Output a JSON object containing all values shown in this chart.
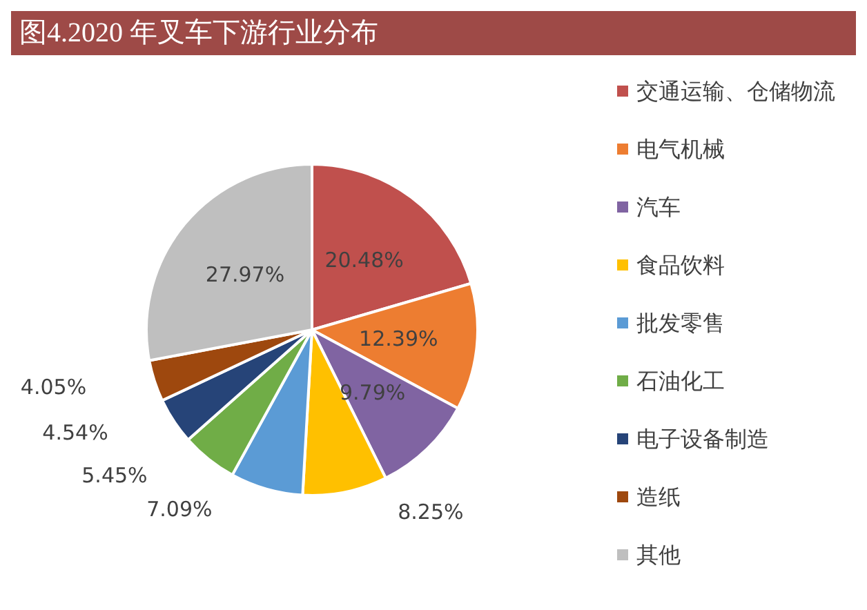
{
  "chart_data": {
    "type": "pie",
    "title": "图4.2020 年叉车下游行业分布",
    "categories": [
      "交通运输、仓储物流",
      "电气机械",
      "汽车",
      "食品饮料",
      "批发零售",
      "石油化工",
      "电子设备制造",
      "造纸",
      "其他"
    ],
    "values": [
      20.48,
      12.39,
      9.79,
      8.25,
      7.09,
      5.45,
      4.54,
      4.05,
      27.97
    ],
    "colors": [
      "#c0504d",
      "#ed7d31",
      "#8064a2",
      "#ffc000",
      "#5b9bd5",
      "#70ad47",
      "#264478",
      "#9e480e",
      "#bfbfbf"
    ],
    "value_labels": [
      "20.48%",
      "12.39%",
      "9.79%",
      "8.25%",
      "7.09%",
      "5.45%",
      "4.54%",
      "4.05%",
      "27.97%"
    ],
    "legend": "right"
  }
}
